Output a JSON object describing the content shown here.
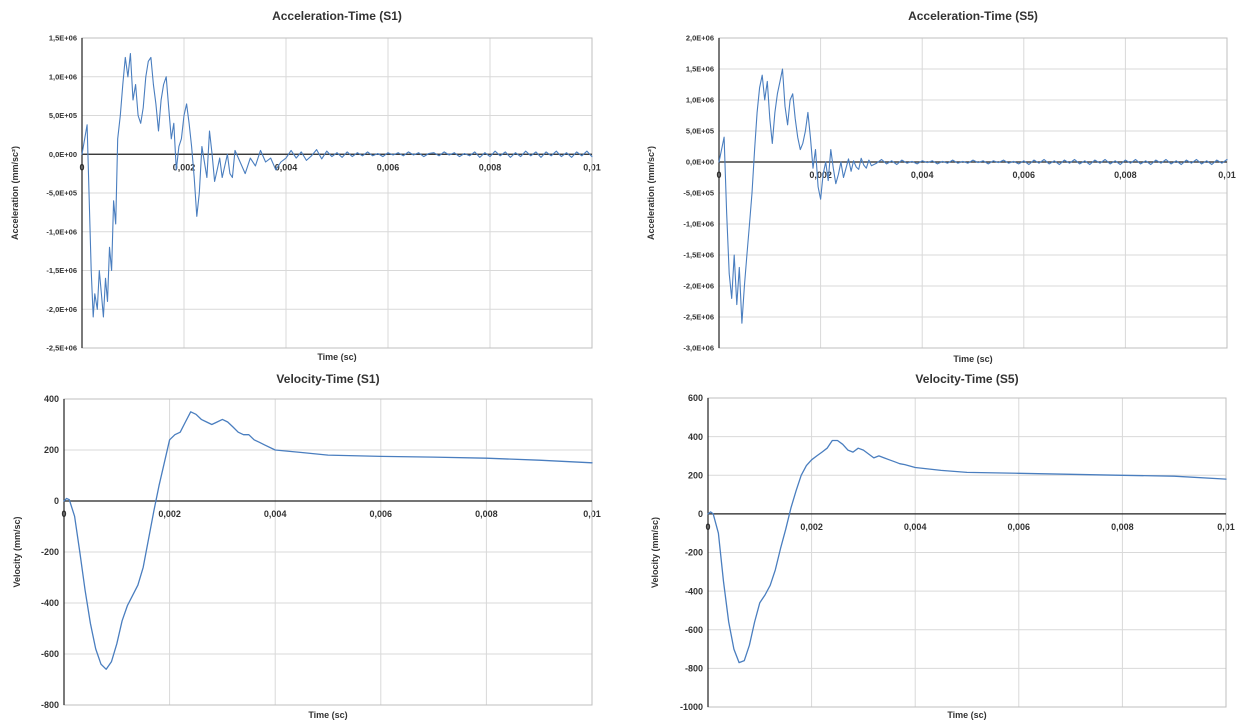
{
  "colors": {
    "series": "#4a7ebf",
    "grid": "#d9d9d9",
    "axis": "#222222",
    "text": "#333333"
  },
  "chart_data": [
    {
      "type": "line",
      "title": "Acceleration-Time (S1)",
      "xlabel": "Time (sc)",
      "ylabel": "Acceleration (mm/sc²)",
      "xlim": [
        0,
        0.01
      ],
      "ylim": [
        -2500000,
        1500000
      ],
      "x_ticks": [
        "0",
        "0,002",
        "0,004",
        "0,006",
        "0,008",
        "0,01"
      ],
      "y_ticks": [
        "1,5E+06",
        "1,0E+06",
        "5,0E+05",
        "0,0E+00",
        "-5,0E+05",
        "-1,0E+06",
        "-1,5E+06",
        "-2,0E+06",
        "-2,5E+06"
      ],
      "grid": true,
      "series": [
        {
          "x": [
            0,
            0.0001,
            0.00018,
            0.00022,
            0.00025,
            0.0003,
            0.00034,
            0.00038,
            0.00042,
            0.00046,
            0.0005,
            0.00054,
            0.00058,
            0.00062,
            0.00066,
            0.0007,
            0.00075,
            0.0008,
            0.00085,
            0.0009,
            0.00095,
            0.001,
            0.00105,
            0.0011,
            0.00115,
            0.0012,
            0.00125,
            0.0013,
            0.00135,
            0.0014,
            0.00145,
            0.0015,
            0.00155,
            0.0016,
            0.00165,
            0.0017,
            0.00175,
            0.0018,
            0.00185,
            0.0019,
            0.00195,
            0.002,
            0.00205,
            0.0021,
            0.00215,
            0.0022,
            0.00225,
            0.0023,
            0.00235,
            0.0024,
            0.00245,
            0.0025,
            0.00255,
            0.0026,
            0.00265,
            0.0027,
            0.00275,
            0.0028,
            0.00285,
            0.0029,
            0.00295,
            0.003,
            0.0031,
            0.0032,
            0.0033,
            0.0034,
            0.0035,
            0.0036,
            0.0037,
            0.0038,
            0.0039,
            0.004,
            0.0041,
            0.0042,
            0.0043,
            0.0044,
            0.0045,
            0.0046,
            0.0047,
            0.0048,
            0.0049,
            0.005,
            0.0051,
            0.0052,
            0.0053,
            0.0054,
            0.0055,
            0.0056,
            0.0057,
            0.0058,
            0.0059,
            0.006,
            0.0061,
            0.0062,
            0.0063,
            0.0064,
            0.0065,
            0.0066,
            0.0067,
            0.0068,
            0.0069,
            0.007,
            0.0071,
            0.0072,
            0.0073,
            0.0074,
            0.0075,
            0.0076,
            0.0077,
            0.0078,
            0.0079,
            0.008,
            0.0081,
            0.0082,
            0.0083,
            0.0084,
            0.0085,
            0.0086,
            0.0087,
            0.0088,
            0.0089,
            0.009,
            0.0091,
            0.0092,
            0.0093,
            0.0094,
            0.0095,
            0.0096,
            0.0097,
            0.0098,
            0.0099,
            0.01
          ],
          "y": [
            0,
            380000,
            -1500000,
            -2100000,
            -1800000,
            -2000000,
            -1500000,
            -1800000,
            -2100000,
            -1600000,
            -1900000,
            -1200000,
            -1500000,
            -600000,
            -900000,
            200000,
            500000,
            900000,
            1250000,
            1000000,
            1300000,
            700000,
            900000,
            500000,
            400000,
            600000,
            1000000,
            1200000,
            1250000,
            900000,
            650000,
            300000,
            700000,
            900000,
            1000000,
            600000,
            200000,
            400000,
            -200000,
            100000,
            200000,
            500000,
            650000,
            400000,
            100000,
            -300000,
            -800000,
            -500000,
            100000,
            -100000,
            -300000,
            300000,
            0,
            -350000,
            -200000,
            -50000,
            -300000,
            -150000,
            0,
            -250000,
            -300000,
            50000,
            -100000,
            -250000,
            -50000,
            -150000,
            50000,
            -100000,
            -50000,
            -200000,
            -100000,
            -50000,
            50000,
            -50000,
            30000,
            -80000,
            -20000,
            60000,
            -60000,
            40000,
            -30000,
            20000,
            -40000,
            30000,
            -30000,
            20000,
            -20000,
            30000,
            -20000,
            10000,
            -30000,
            20000,
            -10000,
            20000,
            -20000,
            30000,
            -10000,
            20000,
            -30000,
            10000,
            20000,
            -20000,
            30000,
            -10000,
            20000,
            -30000,
            10000,
            -20000,
            30000,
            -40000,
            20000,
            -30000,
            40000,
            -20000,
            30000,
            -40000,
            20000,
            -30000,
            40000,
            -20000,
            30000,
            -40000,
            30000,
            -20000,
            40000,
            -30000,
            20000,
            -40000,
            30000,
            -20000,
            40000,
            -30000
          ]
        }
      ]
    },
    {
      "type": "line",
      "title": "Acceleration-Time (S5)",
      "xlabel": "Time (sc)",
      "ylabel": "Acceleration (mm/sc²)",
      "xlim": [
        0,
        0.01
      ],
      "ylim": [
        -3000000,
        2000000
      ],
      "x_ticks": [
        "0",
        "0,002",
        "0,004",
        "0,006",
        "0,008",
        "0,01"
      ],
      "y_ticks": [
        "2,0E+06",
        "1,5E+06",
        "1,0E+06",
        "5,0E+05",
        "0,0E+00",
        "-5,0E+05",
        "-1,0E+06",
        "-1,5E+06",
        "-2,0E+06",
        "-2,5E+06",
        "-3,0E+06"
      ],
      "grid": true,
      "series": [
        {
          "x": [
            0,
            0.0001,
            0.00015,
            0.0002,
            0.00025,
            0.0003,
            0.00035,
            0.0004,
            0.00045,
            0.0005,
            0.00055,
            0.0006,
            0.00065,
            0.0007,
            0.00075,
            0.0008,
            0.00085,
            0.0009,
            0.00095,
            0.001,
            0.00105,
            0.0011,
            0.00115,
            0.0012,
            0.00125,
            0.0013,
            0.00135,
            0.0014,
            0.00145,
            0.0015,
            0.00155,
            0.0016,
            0.00165,
            0.0017,
            0.00175,
            0.0018,
            0.00185,
            0.0019,
            0.00195,
            0.002,
            0.00205,
            0.0021,
            0.00215,
            0.0022,
            0.00225,
            0.0023,
            0.00235,
            0.0024,
            0.00245,
            0.0025,
            0.00255,
            0.0026,
            0.00265,
            0.0027,
            0.00275,
            0.0028,
            0.00285,
            0.0029,
            0.00295,
            0.003,
            0.0031,
            0.0032,
            0.0033,
            0.0034,
            0.0035,
            0.0036,
            0.0037,
            0.0038,
            0.0039,
            0.004,
            0.0041,
            0.0042,
            0.0043,
            0.0044,
            0.0045,
            0.0046,
            0.0047,
            0.0048,
            0.0049,
            0.005,
            0.0051,
            0.0052,
            0.0053,
            0.0054,
            0.0055,
            0.0056,
            0.0057,
            0.0058,
            0.0059,
            0.006,
            0.0061,
            0.0062,
            0.0063,
            0.0064,
            0.0065,
            0.0066,
            0.0067,
            0.0068,
            0.0069,
            0.007,
            0.0071,
            0.0072,
            0.0073,
            0.0074,
            0.0075,
            0.0076,
            0.0077,
            0.0078,
            0.0079,
            0.008,
            0.0081,
            0.0082,
            0.0083,
            0.0084,
            0.0085,
            0.0086,
            0.0087,
            0.0088,
            0.0089,
            0.009,
            0.0091,
            0.0092,
            0.0093,
            0.0094,
            0.0095,
            0.0096,
            0.0097,
            0.0098,
            0.0099,
            0.01
          ],
          "y": [
            0,
            400000,
            -800000,
            -1800000,
            -2200000,
            -1500000,
            -2300000,
            -1700000,
            -2600000,
            -2000000,
            -1500000,
            -1000000,
            -500000,
            200000,
            800000,
            1200000,
            1400000,
            1000000,
            1300000,
            700000,
            300000,
            800000,
            1100000,
            1300000,
            1500000,
            900000,
            600000,
            1000000,
            1100000,
            700000,
            400000,
            200000,
            300000,
            500000,
            800000,
            400000,
            -100000,
            200000,
            -400000,
            -600000,
            -200000,
            0,
            -300000,
            200000,
            -100000,
            -350000,
            -200000,
            0,
            -250000,
            -100000,
            50000,
            -150000,
            20000,
            -80000,
            -120000,
            60000,
            -50000,
            -100000,
            30000,
            -60000,
            -20000,
            40000,
            -30000,
            20000,
            -40000,
            30000,
            -20000,
            10000,
            -30000,
            20000,
            -10000,
            20000,
            -30000,
            10000,
            -20000,
            30000,
            -20000,
            10000,
            -20000,
            30000,
            -10000,
            20000,
            -30000,
            20000,
            -10000,
            30000,
            -20000,
            10000,
            -30000,
            20000,
            -40000,
            30000,
            -20000,
            40000,
            -30000,
            20000,
            -40000,
            30000,
            -20000,
            40000,
            -30000,
            20000,
            -40000,
            30000,
            -20000,
            40000,
            -30000,
            20000,
            -40000,
            30000,
            -20000,
            40000,
            -30000,
            20000,
            -40000,
            30000,
            -20000,
            40000,
            -30000,
            20000,
            -40000,
            30000,
            -20000,
            40000,
            -30000,
            20000,
            -40000,
            30000,
            -20000,
            40000
          ]
        }
      ]
    },
    {
      "type": "line",
      "title": "Velocity-Time (S1)",
      "xlabel": "Time (sc)",
      "ylabel": "Velocity (mm/sc)",
      "xlim": [
        0,
        0.01
      ],
      "ylim": [
        -800,
        400
      ],
      "x_ticks": [
        "0",
        "0,002",
        "0,004",
        "0,006",
        "0,008",
        "0,01"
      ],
      "y_ticks": [
        "400",
        "200",
        "0",
        "-200",
        "-400",
        "-600",
        "-800"
      ],
      "grid": true,
      "series": [
        {
          "x": [
            0,
            5e-05,
            0.0001,
            0.0002,
            0.0003,
            0.0004,
            0.0005,
            0.0006,
            0.0007,
            0.0008,
            0.0009,
            0.001,
            0.0011,
            0.0012,
            0.0013,
            0.0014,
            0.0015,
            0.0016,
            0.0017,
            0.0018,
            0.0019,
            0.002,
            0.0021,
            0.0022,
            0.0023,
            0.0024,
            0.0025,
            0.0026,
            0.0027,
            0.0028,
            0.0029,
            0.003,
            0.0031,
            0.0032,
            0.0033,
            0.0034,
            0.0035,
            0.0036,
            0.0037,
            0.0038,
            0.004,
            0.0045,
            0.005,
            0.006,
            0.007,
            0.008,
            0.009,
            0.01
          ],
          "y": [
            0,
            10,
            5,
            -60,
            -200,
            -350,
            -480,
            -580,
            -640,
            -660,
            -630,
            -560,
            -470,
            -410,
            -370,
            -330,
            -260,
            -150,
            -40,
            60,
            150,
            240,
            260,
            270,
            310,
            350,
            340,
            320,
            310,
            300,
            310,
            320,
            310,
            290,
            270,
            260,
            260,
            240,
            230,
            220,
            200,
            190,
            180,
            175,
            172,
            168,
            160,
            150
          ]
        }
      ]
    },
    {
      "type": "line",
      "title": "Velocity-Time (S5)",
      "xlabel": "Time (sc)",
      "ylabel": "Velocity (mm/sc)",
      "xlim": [
        0,
        0.01
      ],
      "ylim": [
        -1000,
        600
      ],
      "x_ticks": [
        "0",
        "0,002",
        "0,004",
        "0,006",
        "0,008",
        "0,01"
      ],
      "y_ticks": [
        "600",
        "400",
        "200",
        "0",
        "-200",
        "-400",
        "-600",
        "-800",
        "-1000"
      ],
      "grid": true,
      "series": [
        {
          "x": [
            0,
            5e-05,
            0.0001,
            0.0002,
            0.0003,
            0.0004,
            0.0005,
            0.0006,
            0.0007,
            0.0008,
            0.0009,
            0.001,
            0.0011,
            0.0012,
            0.0013,
            0.0014,
            0.0015,
            0.0016,
            0.0017,
            0.0018,
            0.0019,
            0.002,
            0.0021,
            0.0022,
            0.0023,
            0.0024,
            0.0025,
            0.0026,
            0.0027,
            0.0028,
            0.0029,
            0.003,
            0.0031,
            0.0032,
            0.0033,
            0.0034,
            0.0035,
            0.0036,
            0.0037,
            0.0038,
            0.004,
            0.0045,
            0.005,
            0.006,
            0.007,
            0.008,
            0.009,
            0.01
          ],
          "y": [
            0,
            10,
            0,
            -100,
            -350,
            -560,
            -700,
            -770,
            -760,
            -680,
            -560,
            -460,
            -420,
            -370,
            -290,
            -180,
            -80,
            30,
            120,
            200,
            250,
            280,
            300,
            320,
            340,
            380,
            380,
            360,
            330,
            320,
            340,
            330,
            310,
            290,
            300,
            290,
            280,
            270,
            260,
            255,
            240,
            225,
            215,
            210,
            205,
            200,
            195,
            180
          ]
        }
      ]
    }
  ]
}
